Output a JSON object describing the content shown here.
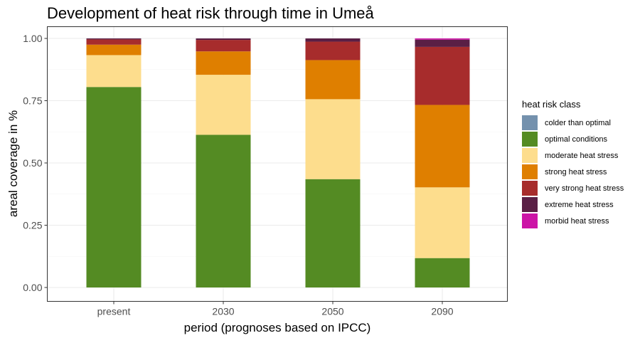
{
  "chart_data": {
    "type": "bar",
    "stacked": true,
    "title": "Development of heat risk through time in Umeå",
    "xlabel": "period (prognoses based on IPCC)",
    "ylabel": "areal coverage in %",
    "categories": [
      "present",
      "2030",
      "2050",
      "2090"
    ],
    "ylim": [
      0,
      1
    ],
    "yticks": [
      "0.00",
      "0.25",
      "0.50",
      "0.75",
      "1.00"
    ],
    "grid": true,
    "legend_title": "heat risk class",
    "legend_position": "right",
    "series": [
      {
        "name": "colder than optimal",
        "color": "#7491ad",
        "values": [
          0.0,
          0.0,
          0.0,
          0.0
        ]
      },
      {
        "name": "optimal conditions",
        "color": "#548b23",
        "values": [
          0.805,
          0.613,
          0.435,
          0.118
        ]
      },
      {
        "name": "moderate heat stress",
        "color": "#fddd8d",
        "values": [
          0.128,
          0.241,
          0.321,
          0.284
        ]
      },
      {
        "name": "strong heat stress",
        "color": "#df7f00",
        "values": [
          0.042,
          0.094,
          0.157,
          0.331
        ]
      },
      {
        "name": "very strong heat stress",
        "color": "#a72c2c",
        "values": [
          0.021,
          0.046,
          0.074,
          0.233
        ]
      },
      {
        "name": "extreme heat stress",
        "color": "#5a1f45",
        "values": [
          0.004,
          0.006,
          0.013,
          0.029
        ]
      },
      {
        "name": "morbid heat stress",
        "color": "#cc14a6",
        "values": [
          0.0,
          0.0,
          0.0,
          0.005
        ]
      }
    ]
  }
}
